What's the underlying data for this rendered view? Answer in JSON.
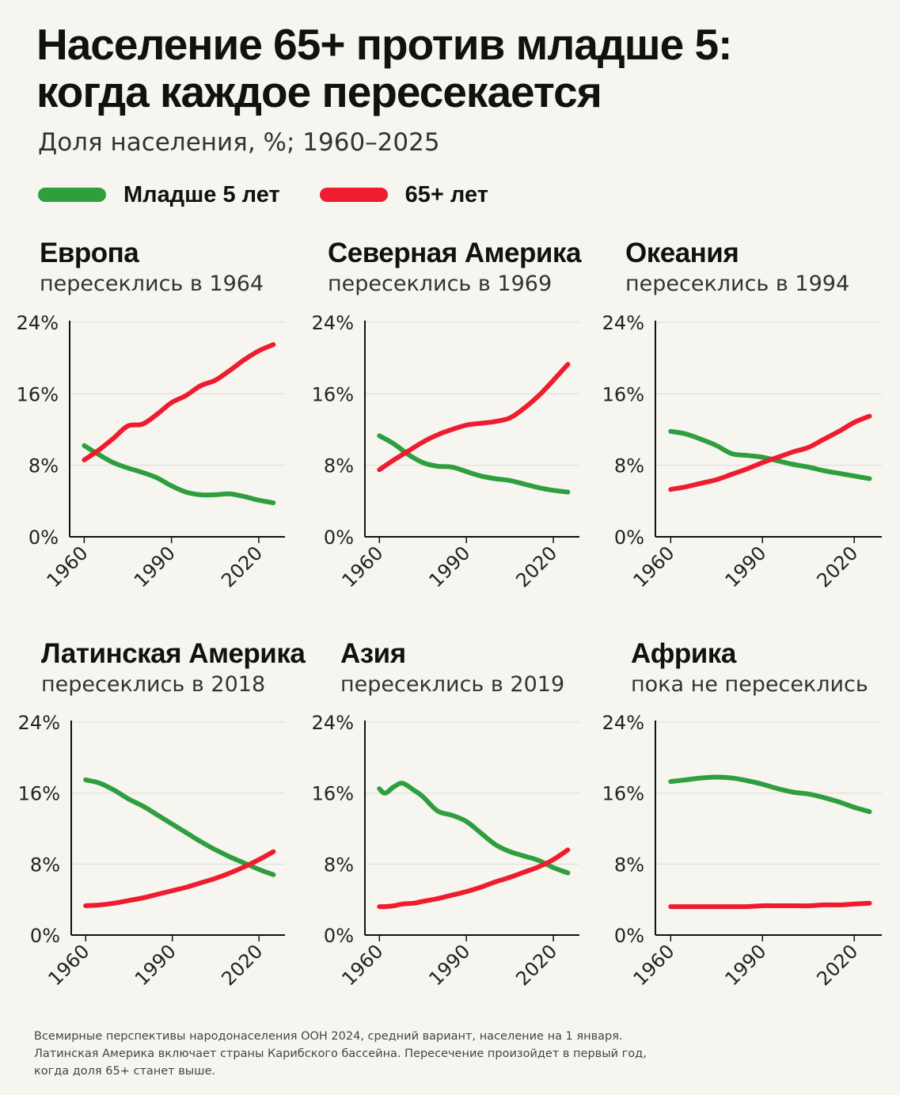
{
  "title": {
    "line1": "Население 65+ против младше 5:",
    "line2": "когда каждое пересекается"
  },
  "subtitle": "Доля населения, %; 1960–2025",
  "legend": [
    {
      "label": "Младше 5 лет",
      "color": "#2e9e3e"
    },
    {
      "label": "65+ лет",
      "color": "#ee1c2e"
    }
  ],
  "footnote": [
    "Всемирные перспективы народонаселения ООН 2024, средний вариант, население на 1 января.",
    "Латинская Америка включает страны Карибского бассейна. Пересечение произойдет в первый год,",
    "когда доля 65+ станет выше."
  ],
  "chart_data": [
    {
      "type": "line",
      "title": "Европа",
      "subtitle": "пересеклись в 1964",
      "x": [
        1960,
        1965,
        1970,
        1975,
        1980,
        1985,
        1990,
        1995,
        2000,
        2005,
        2010,
        2015,
        2020,
        2025
      ],
      "series": [
        {
          "name": "Младше 5 лет",
          "values": [
            10.2,
            9.2,
            8.3,
            7.7,
            7.2,
            6.6,
            5.7,
            5.0,
            4.7,
            4.7,
            4.8,
            4.5,
            4.1,
            3.8
          ]
        },
        {
          "name": "65+ лет",
          "values": [
            8.6,
            9.7,
            11.0,
            12.4,
            12.6,
            13.7,
            15.0,
            15.8,
            16.9,
            17.5,
            18.6,
            19.8,
            20.8,
            21.5
          ]
        }
      ],
      "ylim": [
        0,
        24
      ],
      "yticks": [
        "0%",
        "8%",
        "16%",
        "24%"
      ],
      "xticks": [
        "1960",
        "1990",
        "2020"
      ]
    },
    {
      "type": "line",
      "title": "Северная Америка",
      "subtitle": "пересеклись в 1969",
      "x": [
        1960,
        1965,
        1970,
        1975,
        1980,
        1985,
        1990,
        1995,
        2000,
        2005,
        2010,
        2015,
        2020,
        2025
      ],
      "series": [
        {
          "name": "Младше 5 лет",
          "values": [
            11.3,
            10.4,
            9.2,
            8.3,
            7.9,
            7.8,
            7.3,
            6.8,
            6.5,
            6.3,
            5.9,
            5.5,
            5.2,
            5.0
          ]
        },
        {
          "name": "65+ лет",
          "values": [
            7.5,
            8.6,
            9.6,
            10.6,
            11.4,
            12.0,
            12.5,
            12.7,
            12.9,
            13.3,
            14.4,
            15.8,
            17.5,
            19.3
          ]
        }
      ],
      "ylim": [
        0,
        24
      ],
      "yticks": [
        "0%",
        "8%",
        "16%",
        "24%"
      ],
      "xticks": [
        "1960",
        "1990",
        "2020"
      ]
    },
    {
      "type": "line",
      "title": "Океания",
      "subtitle": "пересеклись в 1994",
      "x": [
        1960,
        1965,
        1970,
        1975,
        1980,
        1985,
        1990,
        1995,
        2000,
        2005,
        2010,
        2015,
        2020,
        2025
      ],
      "series": [
        {
          "name": "Младше 5 лет",
          "values": [
            11.8,
            11.5,
            10.9,
            10.2,
            9.3,
            9.1,
            8.9,
            8.5,
            8.1,
            7.8,
            7.4,
            7.1,
            6.8,
            6.5
          ]
        },
        {
          "name": "65+ лет",
          "values": [
            5.3,
            5.6,
            6.0,
            6.4,
            7.0,
            7.6,
            8.3,
            8.9,
            9.5,
            10.0,
            10.9,
            11.8,
            12.8,
            13.5
          ]
        }
      ],
      "ylim": [
        0,
        24
      ],
      "yticks": [
        "0%",
        "8%",
        "16%",
        "24%"
      ],
      "xticks": [
        "1960",
        "1990",
        "2020"
      ]
    },
    {
      "type": "line",
      "title": "Латинская Америка",
      "subtitle": "пересеклись в 2018",
      "x": [
        1960,
        1965,
        1970,
        1975,
        1980,
        1985,
        1990,
        1995,
        2000,
        2005,
        2010,
        2015,
        2020,
        2025
      ],
      "series": [
        {
          "name": "Младше 5 лет",
          "values": [
            17.5,
            17.1,
            16.3,
            15.3,
            14.5,
            13.5,
            12.5,
            11.5,
            10.5,
            9.6,
            8.8,
            8.1,
            7.4,
            6.8
          ]
        },
        {
          "name": "65+ лет",
          "values": [
            3.3,
            3.4,
            3.6,
            3.9,
            4.2,
            4.6,
            5.0,
            5.4,
            5.9,
            6.4,
            7.0,
            7.7,
            8.5,
            9.4
          ]
        }
      ],
      "ylim": [
        0,
        24
      ],
      "yticks": [
        "0%",
        "8%",
        "16%",
        "24%"
      ],
      "xticks": [
        "1960",
        "1990",
        "2020"
      ]
    },
    {
      "type": "line",
      "title": "Азия",
      "subtitle": "пересеклись в 2019",
      "x": [
        1960,
        1962,
        1965,
        1968,
        1972,
        1975,
        1980,
        1985,
        1990,
        1995,
        2000,
        2005,
        2010,
        2015,
        2020,
        2025
      ],
      "series": [
        {
          "name": "Младше 5 лет",
          "values": [
            16.5,
            16.0,
            16.7,
            17.1,
            16.3,
            15.6,
            14.0,
            13.5,
            12.8,
            11.5,
            10.2,
            9.4,
            8.9,
            8.4,
            7.6,
            7.0
          ]
        },
        {
          "name": "65+ лет",
          "values": [
            3.2,
            3.2,
            3.3,
            3.5,
            3.6,
            3.8,
            4.1,
            4.5,
            4.9,
            5.4,
            6.0,
            6.5,
            7.1,
            7.7,
            8.5,
            9.6
          ]
        }
      ],
      "ylim": [
        0,
        24
      ],
      "yticks": [
        "0%",
        "8%",
        "16%",
        "24%"
      ],
      "xticks": [
        "1960",
        "1990",
        "2020"
      ]
    },
    {
      "type": "line",
      "title": "Африка",
      "subtitle": "пока не пересеклись",
      "x": [
        1960,
        1965,
        1970,
        1975,
        1980,
        1985,
        1990,
        1995,
        2000,
        2005,
        2010,
        2015,
        2020,
        2025
      ],
      "series": [
        {
          "name": "Младше 5 лет",
          "values": [
            17.3,
            17.5,
            17.7,
            17.8,
            17.7,
            17.4,
            17.0,
            16.5,
            16.1,
            15.9,
            15.5,
            15.0,
            14.4,
            13.9
          ]
        },
        {
          "name": "65+ лет",
          "values": [
            3.2,
            3.2,
            3.2,
            3.2,
            3.2,
            3.2,
            3.3,
            3.3,
            3.3,
            3.3,
            3.4,
            3.4,
            3.5,
            3.6
          ]
        }
      ],
      "ylim": [
        0,
        24
      ],
      "yticks": [
        "0%",
        "8%",
        "16%",
        "24%"
      ],
      "xticks": [
        "1960",
        "1990",
        "2020"
      ]
    }
  ]
}
